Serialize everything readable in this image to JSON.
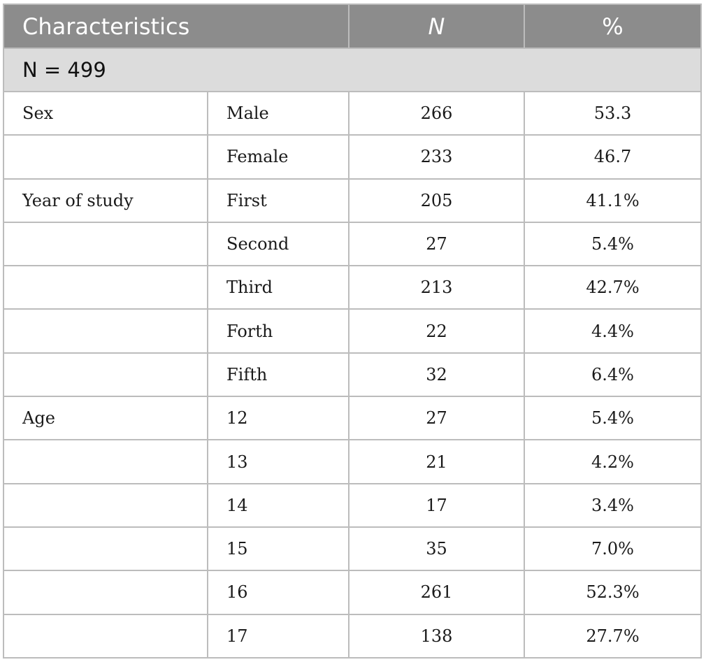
{
  "table": {
    "headers": {
      "characteristics": "Characteristics",
      "n": "N",
      "percent": "%"
    },
    "total_row": "N = 499",
    "rows": [
      {
        "category": "Sex",
        "subcategory": "Male",
        "n": "266",
        "percent": "53.3"
      },
      {
        "category": "",
        "subcategory": "Female",
        "n": "233",
        "percent": "46.7"
      },
      {
        "category": "Year of study",
        "subcategory": "First",
        "n": "205",
        "percent": "41.1%"
      },
      {
        "category": "",
        "subcategory": "Second",
        "n": "27",
        "percent": "5.4%"
      },
      {
        "category": "",
        "subcategory": "Third",
        "n": "213",
        "percent": "42.7%"
      },
      {
        "category": "",
        "subcategory": "Forth",
        "n": "22",
        "percent": "4.4%"
      },
      {
        "category": "",
        "subcategory": "Fifth",
        "n": "32",
        "percent": "6.4%"
      },
      {
        "category": "Age",
        "subcategory": "12",
        "n": "27",
        "percent": "5.4%"
      },
      {
        "category": "",
        "subcategory": "13",
        "n": "21",
        "percent": "4.2%"
      },
      {
        "category": "",
        "subcategory": "14",
        "n": "17",
        "percent": "3.4%"
      },
      {
        "category": "",
        "subcategory": "15",
        "n": "35",
        "percent": "7.0%"
      },
      {
        "category": "",
        "subcategory": "16",
        "n": "261",
        "percent": "52.3%"
      },
      {
        "category": "",
        "subcategory": "17",
        "n": "138",
        "percent": "27.7%"
      }
    ]
  },
  "colors": {
    "header_bg": "#8c8c8c",
    "subheader_bg": "#dcdcdc",
    "border": "#bcbcbc"
  }
}
